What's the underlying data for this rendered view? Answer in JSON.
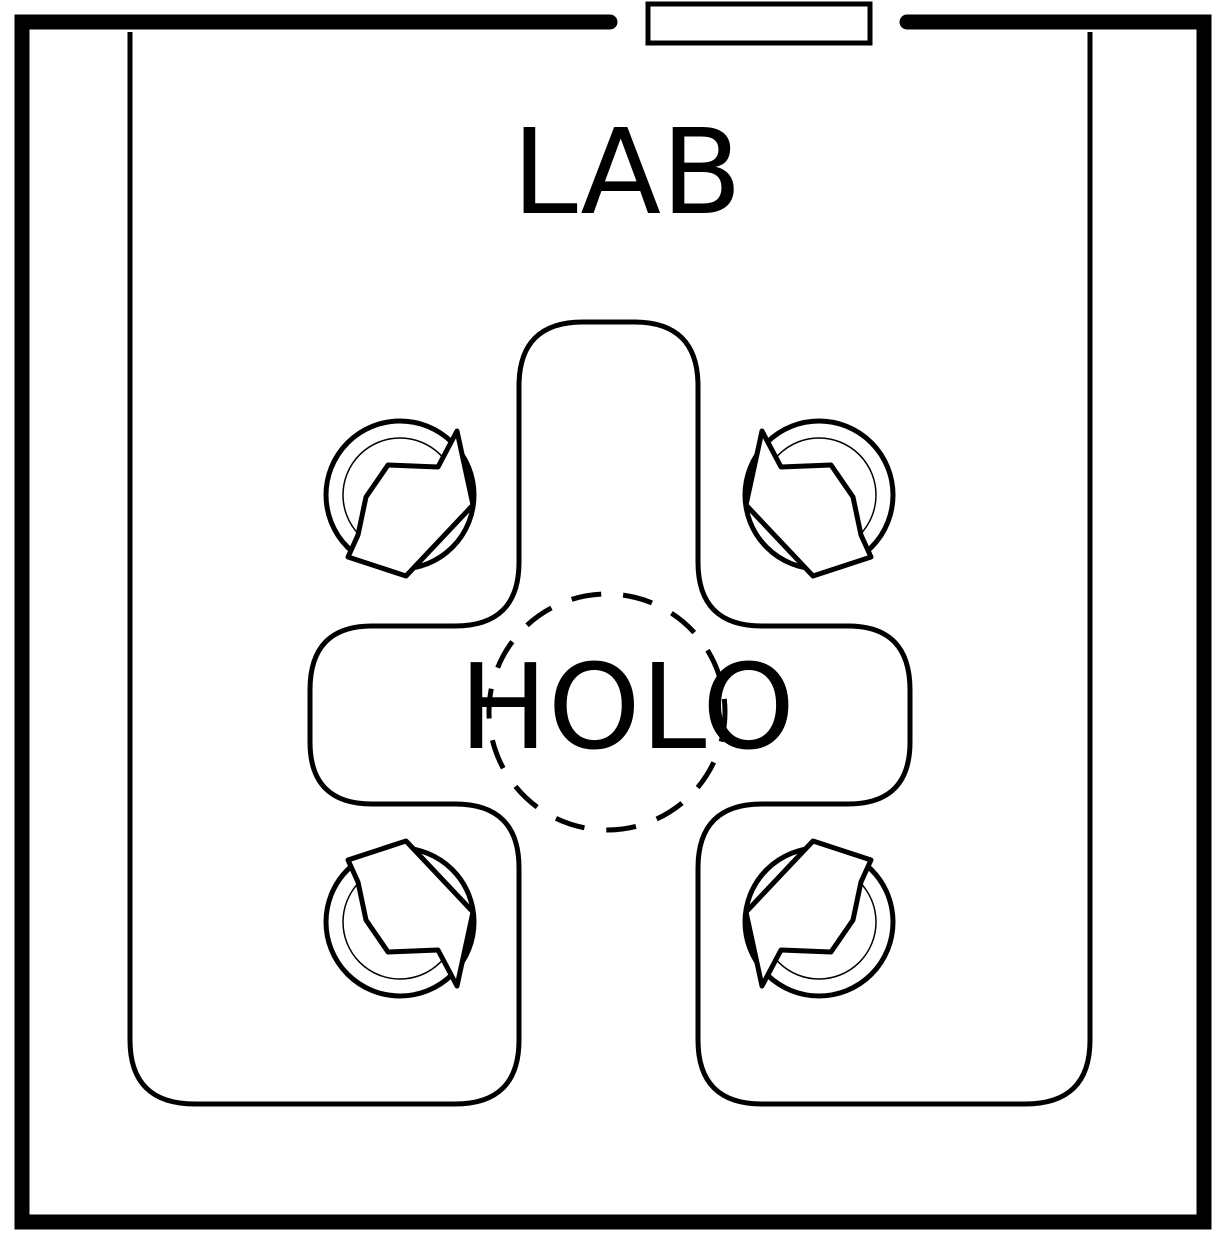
{
  "map": {
    "room_label": "LAB",
    "center_label": "HOLO",
    "colors": {
      "line": "#000000",
      "background": "#ffffff"
    },
    "features": {
      "door": "door-gap-top",
      "hologram_area": "dashed-circle",
      "seats": 4
    }
  }
}
